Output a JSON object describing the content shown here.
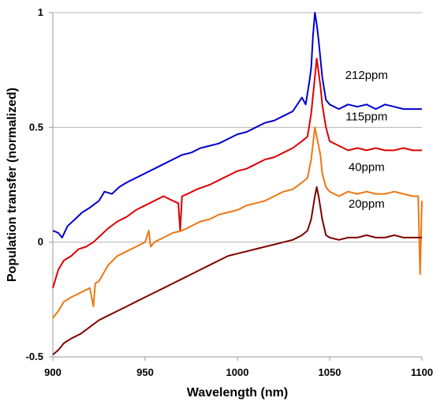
{
  "chart_data": {
    "type": "line",
    "title": "",
    "xlabel": "Wavelength (nm)",
    "ylabel": "Population transfer (normalized)",
    "xlim": [
      900,
      1100
    ],
    "ylim": [
      -0.5,
      1
    ],
    "x_ticks": [
      "900",
      "950",
      "1000",
      "1050",
      "1100"
    ],
    "x_tick_values": [
      900,
      950,
      1000,
      1050,
      1100
    ],
    "y_ticks": [
      "-0.5",
      "0",
      "0.5",
      "1"
    ],
    "y_tick_values": [
      -0.5,
      0,
      0.5,
      1
    ],
    "grid": "horizontal",
    "legend": "inline labels at right",
    "series": [
      {
        "name": "212ppm",
        "color": "#0000cc",
        "x": [
          900,
          903,
          905,
          908,
          912,
          916,
          920,
          925,
          928,
          932,
          936,
          940,
          945,
          950,
          955,
          960,
          965,
          970,
          975,
          980,
          985,
          990,
          995,
          1000,
          1005,
          1010,
          1015,
          1020,
          1025,
          1030,
          1035,
          1037,
          1039,
          1040,
          1041,
          1042,
          1043,
          1044,
          1045,
          1046,
          1048,
          1050,
          1055,
          1060,
          1065,
          1070,
          1075,
          1080,
          1085,
          1090,
          1095,
          1100
        ],
        "y": [
          0.05,
          0.04,
          0.02,
          0.07,
          0.1,
          0.13,
          0.15,
          0.18,
          0.22,
          0.21,
          0.24,
          0.26,
          0.28,
          0.3,
          0.32,
          0.34,
          0.36,
          0.38,
          0.39,
          0.41,
          0.42,
          0.43,
          0.45,
          0.47,
          0.48,
          0.5,
          0.52,
          0.53,
          0.55,
          0.57,
          0.63,
          0.6,
          0.7,
          0.76,
          0.9,
          1.0,
          0.95,
          0.88,
          0.8,
          0.72,
          0.62,
          0.6,
          0.58,
          0.6,
          0.59,
          0.6,
          0.58,
          0.6,
          0.59,
          0.58,
          0.58,
          0.58
        ]
      },
      {
        "name": "115ppm",
        "color": "#dd0000",
        "x": [
          900,
          903,
          906,
          910,
          914,
          918,
          922,
          926,
          930,
          935,
          940,
          945,
          950,
          955,
          960,
          965,
          968,
          969,
          970,
          973,
          978,
          985,
          990,
          995,
          1000,
          1005,
          1010,
          1015,
          1020,
          1025,
          1030,
          1035,
          1038,
          1040,
          1042,
          1043,
          1044,
          1045,
          1046,
          1048,
          1050,
          1055,
          1060,
          1065,
          1070,
          1075,
          1080,
          1085,
          1090,
          1095,
          1100
        ],
        "y": [
          -0.2,
          -0.12,
          -0.08,
          -0.06,
          -0.03,
          -0.02,
          0.0,
          0.03,
          0.06,
          0.09,
          0.11,
          0.14,
          0.16,
          0.18,
          0.2,
          0.18,
          0.17,
          0.05,
          0.2,
          0.21,
          0.23,
          0.25,
          0.27,
          0.29,
          0.31,
          0.32,
          0.34,
          0.36,
          0.37,
          0.39,
          0.41,
          0.44,
          0.46,
          0.56,
          0.72,
          0.8,
          0.74,
          0.68,
          0.6,
          0.5,
          0.44,
          0.42,
          0.4,
          0.41,
          0.4,
          0.41,
          0.4,
          0.4,
          0.41,
          0.4,
          0.4
        ]
      },
      {
        "name": "40ppm",
        "color": "#ee7711",
        "x": [
          900,
          903,
          906,
          910,
          915,
          920,
          922,
          923,
          925,
          930,
          935,
          940,
          945,
          950,
          952,
          953,
          955,
          960,
          965,
          970,
          975,
          980,
          985,
          990,
          995,
          1000,
          1005,
          1010,
          1015,
          1020,
          1025,
          1030,
          1035,
          1038,
          1040,
          1042,
          1043,
          1044,
          1045,
          1046,
          1048,
          1050,
          1055,
          1060,
          1065,
          1070,
          1075,
          1080,
          1085,
          1090,
          1095,
          1098,
          1099,
          1100
        ],
        "y": [
          -0.33,
          -0.3,
          -0.26,
          -0.24,
          -0.22,
          -0.2,
          -0.28,
          -0.18,
          -0.17,
          -0.1,
          -0.06,
          -0.04,
          -0.02,
          0.0,
          0.05,
          -0.02,
          0.0,
          0.02,
          0.04,
          0.05,
          0.07,
          0.09,
          0.1,
          0.12,
          0.13,
          0.14,
          0.16,
          0.17,
          0.18,
          0.2,
          0.22,
          0.23,
          0.26,
          0.28,
          0.36,
          0.5,
          0.46,
          0.42,
          0.38,
          0.3,
          0.24,
          0.22,
          0.2,
          0.22,
          0.21,
          0.22,
          0.21,
          0.21,
          0.22,
          0.21,
          0.2,
          0.2,
          -0.14,
          0.18
        ]
      },
      {
        "name": "20ppm",
        "color": "#800000",
        "x": [
          900,
          903,
          906,
          910,
          915,
          920,
          925,
          930,
          935,
          940,
          945,
          950,
          955,
          960,
          965,
          970,
          975,
          980,
          985,
          990,
          995,
          1000,
          1005,
          1010,
          1015,
          1020,
          1025,
          1030,
          1035,
          1038,
          1040,
          1042,
          1043,
          1044,
          1045,
          1046,
          1048,
          1050,
          1055,
          1060,
          1065,
          1070,
          1075,
          1080,
          1085,
          1090,
          1095,
          1100
        ],
        "y": [
          -0.49,
          -0.47,
          -0.44,
          -0.42,
          -0.4,
          -0.37,
          -0.34,
          -0.32,
          -0.3,
          -0.28,
          -0.26,
          -0.24,
          -0.22,
          -0.2,
          -0.18,
          -0.16,
          -0.14,
          -0.12,
          -0.1,
          -0.08,
          -0.06,
          -0.05,
          -0.04,
          -0.03,
          -0.02,
          -0.01,
          0.0,
          0.01,
          0.03,
          0.05,
          0.1,
          0.2,
          0.24,
          0.2,
          0.15,
          0.1,
          0.03,
          0.02,
          0.01,
          0.02,
          0.02,
          0.03,
          0.02,
          0.02,
          0.03,
          0.02,
          0.02,
          0.02
        ]
      }
    ]
  }
}
